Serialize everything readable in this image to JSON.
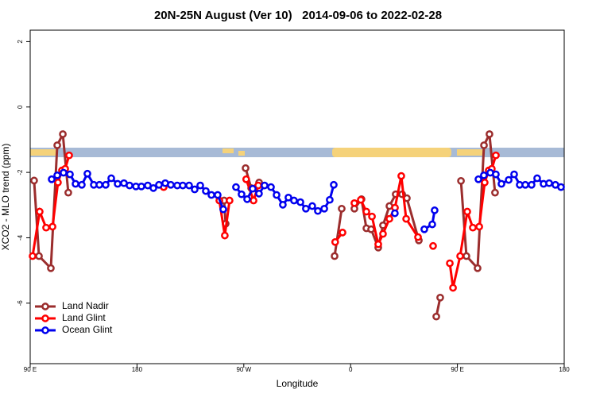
{
  "chart_data": {
    "type": "line",
    "title": "20N-25N August (Ver 10)   2014-09-06 to 2022-02-28",
    "x_label": "Longitude",
    "y_label": "XCO2 - MLO trend (ppm)",
    "xlim": [
      90,
      540
    ],
    "ylim": [
      -7.85,
      2.35
    ],
    "xticks": [
      {
        "value": 90,
        "label": "90 E"
      },
      180,
      {
        "value": 270,
        "label": "90 W"
      },
      {
        "value": 360,
        "label": "0"
      },
      {
        "value": 450,
        "label": "90 E"
      },
      {
        "value": 540,
        "label": "180"
      }
    ],
    "yticks": [
      2,
      0,
      -2,
      -4,
      -6
    ],
    "legend": "bottom-left",
    "series": [
      {
        "name": "Land Nadir",
        "color": "#9b2d2d",
        "x": [
          93.3,
          97.4,
          107.4,
          112.8,
          117.5,
          122.1,
          null,
          253.4,
          254.7,
          null,
          271.5,
          276.2,
          282.9,
          null,
          346.5,
          352.5,
          null,
          363.2,
          369.2,
          373.3,
          377.3,
          383.3,
          387.3,
          392.7,
          398.0,
          403.4,
          407.4,
          417.5,
          null,
          432.2,
          435.5,
          null,
          453.0,
          457.6,
          467.0,
          472.4,
          477.0,
          481.7
        ],
        "values": [
          -2.25,
          -4.56,
          -4.93,
          -1.17,
          -0.83,
          -2.62,
          null,
          -2.86,
          -3.57,
          null,
          -1.87,
          -2.48,
          -2.31,
          null,
          -4.56,
          -3.11,
          null,
          -3.11,
          -2.82,
          -3.71,
          -3.74,
          -4.3,
          -3.62,
          -3.03,
          -2.67,
          -2.67,
          -2.79,
          -4.08,
          null,
          -6.41,
          -5.83,
          null,
          -2.26,
          -4.56,
          -4.93,
          -1.17,
          -0.83,
          -2.62
        ]
      },
      {
        "name": "Land Glint",
        "color": "#ff0000",
        "x": [
          92.0,
          98.0,
          103.4,
          108.8,
          113.4,
          116.8,
          119.5,
          122.8,
          null,
          202.5,
          null,
          249.4,
          254.0,
          258.0,
          null,
          272.0,
          278.2,
          282.2,
          null,
          347.0,
          353.2,
          null,
          363.2,
          368.6,
          373.3,
          378.0,
          383.3,
          387.3,
          392.7,
          397.4,
          402.7,
          406.8,
          416.8,
          null,
          429.5,
          null,
          443.6,
          446.3,
          452.3,
          458.3,
          463.0,
          468.4,
          473.0,
          476.4,
          479.0,
          482.4
        ],
        "values": [
          -4.56,
          -3.2,
          -3.69,
          -3.66,
          -2.31,
          -1.94,
          -1.89,
          -1.48,
          null,
          -2.45,
          null,
          -2.86,
          -3.93,
          -2.86,
          null,
          -2.21,
          -2.86,
          -2.4,
          null,
          -4.13,
          -3.84,
          null,
          -2.94,
          -2.84,
          -3.2,
          -3.35,
          -4.2,
          -3.88,
          -3.42,
          -3.08,
          -2.11,
          -3.42,
          -3.98,
          null,
          -4.25,
          null,
          -4.78,
          -5.53,
          -4.56,
          -3.2,
          -3.69,
          -3.66,
          -2.31,
          -1.94,
          -1.89,
          -1.48
        ]
      },
      {
        "name": "Ocean Glint",
        "color": "#0000ee",
        "x": [
          108.1,
          112.8,
          118.1,
          123.5,
          128.2,
          133.5,
          138.2,
          143.6,
          148.3,
          153.6,
          158.3,
          163.7,
          169.0,
          173.7,
          179.1,
          183.7,
          189.1,
          193.8,
          198.5,
          203.8,
          208.5,
          213.9,
          218.6,
          223.9,
          228.6,
          233.3,
          238.0,
          242.7,
          248.0,
          252.7,
          null,
          263.4,
          268.1,
          272.8,
          277.5,
          282.8,
          287.5,
          292.9,
          297.6,
          302.9,
          307.6,
          312.3,
          317.7,
          322.3,
          327.7,
          332.4,
          337.8,
          342.4,
          345.8,
          null,
          397.3,
          null,
          422.1,
          428.8,
          430.8,
          null,
          467.7,
          472.3,
          477.7,
          482.4,
          487.1,
          493.2,
          497.8,
          502.5,
          507.2,
          512.5,
          517.2,
          522.6,
          527.3,
          532.6,
          537.3
        ],
        "values": [
          -2.21,
          -2.09,
          -2.01,
          -2.06,
          -2.35,
          -2.38,
          -2.04,
          -2.38,
          -2.38,
          -2.38,
          -2.18,
          -2.35,
          -2.33,
          -2.4,
          -2.43,
          -2.43,
          -2.4,
          -2.48,
          -2.38,
          -2.33,
          -2.38,
          -2.4,
          -2.4,
          -2.4,
          -2.52,
          -2.4,
          -2.57,
          -2.69,
          -2.69,
          -3.13,
          null,
          -2.45,
          -2.67,
          -2.82,
          -2.5,
          -2.65,
          -2.4,
          -2.45,
          -2.69,
          -2.99,
          -2.77,
          -2.86,
          -2.91,
          -3.11,
          -3.03,
          -3.18,
          -3.11,
          -2.84,
          -2.38,
          null,
          -3.25,
          null,
          -3.74,
          -3.59,
          -3.16,
          null,
          -2.21,
          -2.09,
          -2.01,
          -2.06,
          -2.35,
          -2.23,
          -2.06,
          -2.38,
          -2.38,
          -2.38,
          -2.18,
          -2.35,
          -2.33,
          -2.38,
          -2.45
        ]
      }
    ]
  }
}
